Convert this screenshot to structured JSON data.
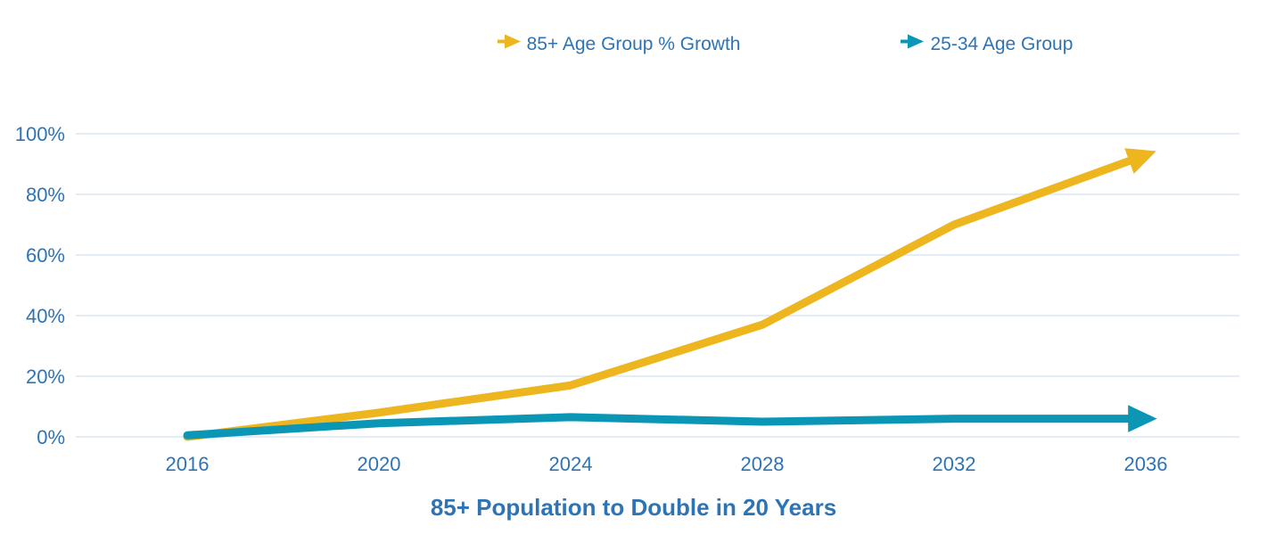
{
  "title": "85+ Population to Double in 20 Years",
  "colors": {
    "series_gold": "#EDB51E",
    "series_teal": "#0A96B4",
    "text_blue": "#2E74B5",
    "grid": "#DCE6F2"
  },
  "chart_data": {
    "type": "line",
    "title": "85+ Population to Double in 20 Years",
    "x": [
      2016,
      2020,
      2024,
      2028,
      2032,
      2036
    ],
    "series": [
      {
        "name": "85+ Age Group % Growth",
        "color": "#EDB51E",
        "values": [
          0,
          8,
          17,
          37,
          70,
          93
        ]
      },
      {
        "name": "25-34 Age Group",
        "color": "#0A96B4",
        "values": [
          0.5,
          4.5,
          6.5,
          5,
          6,
          6
        ]
      }
    ],
    "xlabel": "",
    "ylabel": "",
    "ylim": [
      0,
      100
    ],
    "yticks": [
      0,
      20,
      40,
      60,
      80,
      100
    ],
    "ytick_format": "percent",
    "grid": true,
    "legend_position": "top",
    "line_end_marker": "arrow"
  }
}
